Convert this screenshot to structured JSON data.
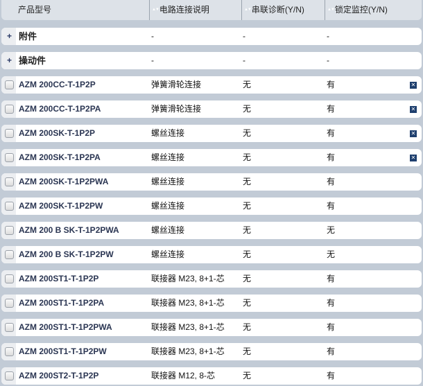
{
  "header": {
    "col1": "产品型号",
    "col2": "电路连接说明",
    "col3": "串联诊断(Y/N)",
    "col4": "锁定监控(Y/N)"
  },
  "groups": [
    {
      "label": "附件",
      "c2": "-",
      "c3": "-",
      "c4": "-"
    },
    {
      "label": "操动件",
      "c2": "-",
      "c3": "-",
      "c4": "-"
    }
  ],
  "rows": [
    {
      "name": "AZM 200CC-T-1P2P",
      "c2": "弹簧滑轮连接",
      "c3": "无",
      "c4": "有",
      "compare": true
    },
    {
      "name": "AZM 200CC-T-1P2PA",
      "c2": "弹簧滑轮连接",
      "c3": "无",
      "c4": "有",
      "compare": true
    },
    {
      "name": "AZM 200SK-T-1P2P",
      "c2": "螺丝连接",
      "c3": "无",
      "c4": "有",
      "compare": true
    },
    {
      "name": "AZM 200SK-T-1P2PA",
      "c2": "螺丝连接",
      "c3": "无",
      "c4": "有",
      "compare": true
    },
    {
      "name": "AZM 200SK-T-1P2PWA",
      "c2": "螺丝连接",
      "c3": "无",
      "c4": "有",
      "compare": false
    },
    {
      "name": "AZM 200SK-T-1P2PW",
      "c2": "螺丝连接",
      "c3": "无",
      "c4": "有",
      "compare": false
    },
    {
      "name": "AZM 200 B SK-T-1P2PWA",
      "c2": "螺丝连接",
      "c3": "无",
      "c4": "无",
      "compare": false
    },
    {
      "name": "AZM 200 B SK-T-1P2PW",
      "c2": "螺丝连接",
      "c3": "无",
      "c4": "无",
      "compare": false
    },
    {
      "name": "AZM 200ST1-T-1P2P",
      "c2": "联接器 M23, 8+1-芯",
      "c3": "无",
      "c4": "有",
      "compare": false
    },
    {
      "name": "AZM 200ST1-T-1P2PA",
      "c2": "联接器 M23, 8+1-芯",
      "c3": "无",
      "c4": "有",
      "compare": false
    },
    {
      "name": "AZM 200ST1-T-1P2PWA",
      "c2": "联接器 M23, 8+1-芯",
      "c3": "无",
      "c4": "有",
      "compare": false
    },
    {
      "name": "AZM 200ST1-T-1P2PW",
      "c2": "联接器 M23, 8+1-芯",
      "c3": "无",
      "c4": "有",
      "compare": false
    },
    {
      "name": "AZM 200ST2-T-1P2P",
      "c2": "联接器 M12, 8-芯",
      "c3": "无",
      "c4": "有",
      "compare": false
    }
  ]
}
